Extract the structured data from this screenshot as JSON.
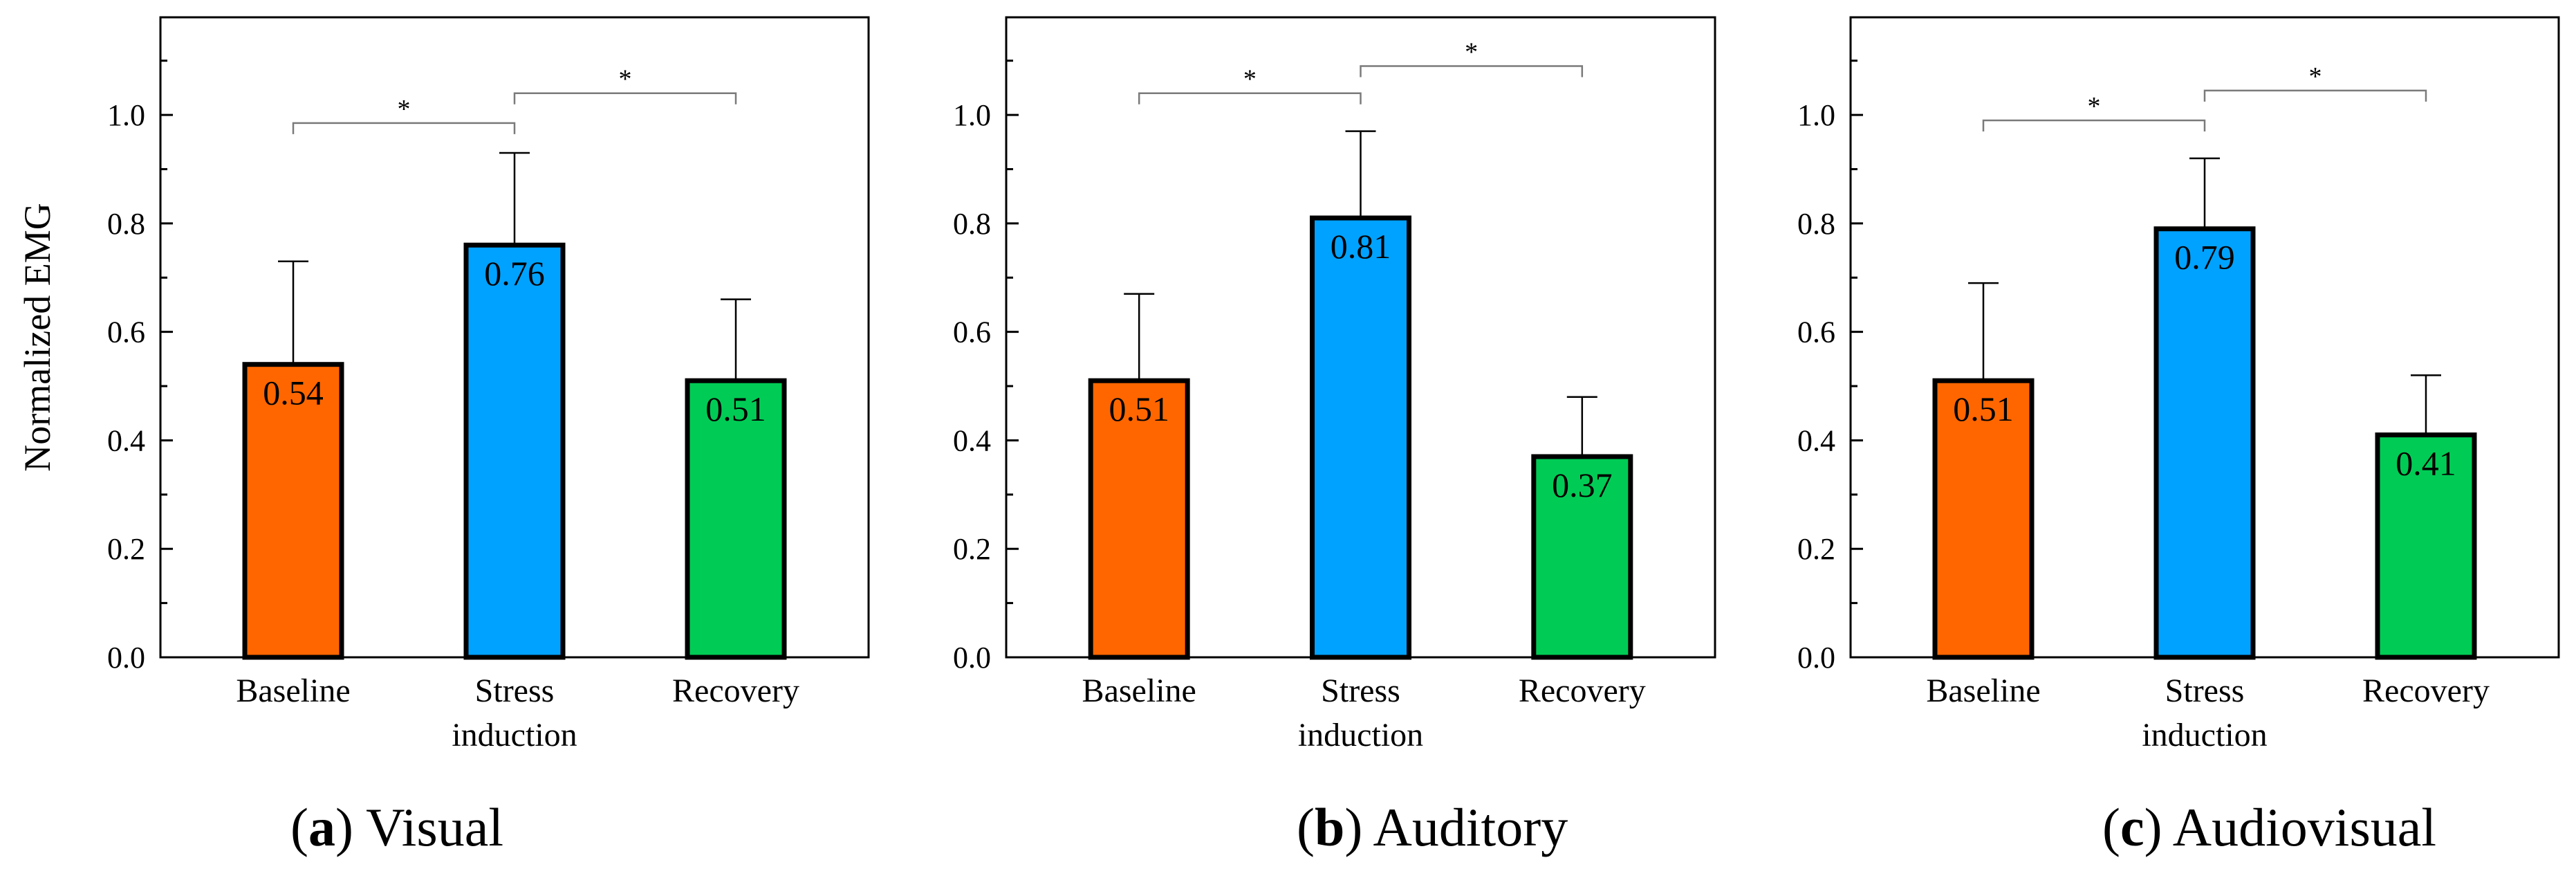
{
  "chart_data": [
    {
      "type": "bar",
      "caption": {
        "letter": "a",
        "title": "Visual"
      },
      "ylabel": "Normalized EMG",
      "ylim": [
        0,
        1.18
      ],
      "yticks": [
        "0.0",
        "0.2",
        "0.4",
        "0.6",
        "0.8",
        "1.0"
      ],
      "categories": [
        [
          "Baseline"
        ],
        [
          "Stress",
          "induction"
        ],
        [
          "Recovery"
        ]
      ],
      "values": [
        0.54,
        0.76,
        0.51
      ],
      "value_labels": [
        "0.54",
        "0.76",
        "0.51"
      ],
      "errors": [
        0.19,
        0.17,
        0.15
      ],
      "colors": [
        "#ff6600",
        "#00a2ff",
        "#00cc55"
      ],
      "significance": [
        {
          "from": 0,
          "to": 1,
          "y": 0.985,
          "label": "*"
        },
        {
          "from": 1,
          "to": 2,
          "y": 1.04,
          "label": "*"
        }
      ]
    },
    {
      "type": "bar",
      "caption": {
        "letter": "b",
        "title": "Auditory"
      },
      "ylabel": "",
      "ylim": [
        0,
        1.18
      ],
      "yticks": [
        "0.0",
        "0.2",
        "0.4",
        "0.6",
        "0.8",
        "1.0"
      ],
      "categories": [
        [
          "Baseline"
        ],
        [
          "Stress",
          "induction"
        ],
        [
          "Recovery"
        ]
      ],
      "values": [
        0.51,
        0.81,
        0.37
      ],
      "value_labels": [
        "0.51",
        "0.81",
        "0.37"
      ],
      "errors": [
        0.16,
        0.16,
        0.11
      ],
      "colors": [
        "#ff6600",
        "#00a2ff",
        "#00cc55"
      ],
      "significance": [
        {
          "from": 0,
          "to": 1,
          "y": 1.04,
          "label": "*"
        },
        {
          "from": 1,
          "to": 2,
          "y": 1.09,
          "label": "*"
        }
      ]
    },
    {
      "type": "bar",
      "caption": {
        "letter": "c",
        "title": "Audiovisual"
      },
      "ylabel": "",
      "ylim": [
        0,
        1.18
      ],
      "yticks": [
        "0.0",
        "0.2",
        "0.4",
        "0.6",
        "0.8",
        "1.0"
      ],
      "categories": [
        [
          "Baseline"
        ],
        [
          "Stress",
          "induction"
        ],
        [
          "Recovery"
        ]
      ],
      "values": [
        0.51,
        0.79,
        0.41
      ],
      "value_labels": [
        "0.51",
        "0.79",
        "0.41"
      ],
      "errors": [
        0.18,
        0.13,
        0.11
      ],
      "colors": [
        "#ff6600",
        "#00a2ff",
        "#00cc55"
      ],
      "significance": [
        {
          "from": 0,
          "to": 1,
          "y": 0.99,
          "label": "*"
        },
        {
          "from": 1,
          "to": 2,
          "y": 1.045,
          "label": "*"
        }
      ]
    }
  ]
}
